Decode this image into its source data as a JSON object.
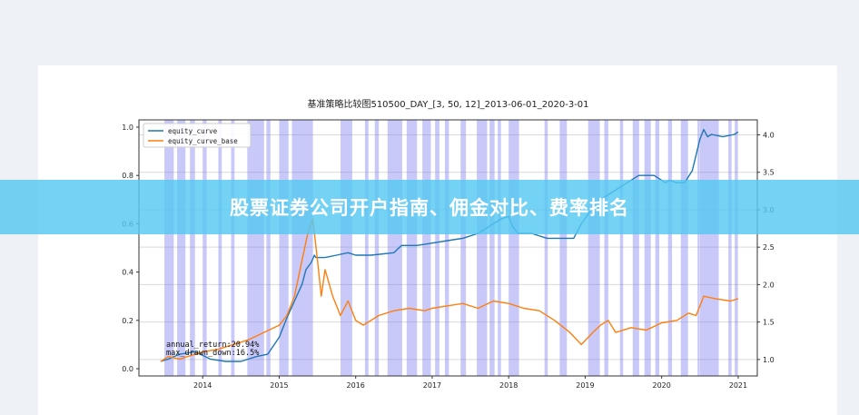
{
  "banner": {
    "text": "股票证券公司开户指南、佣金对比、费率排名"
  },
  "chart_data": {
    "type": "line",
    "title": "基准策略比较图510500_DAY_[3, 50, 12]_2013-06-01_2020-3-01",
    "xlabel": "",
    "ylabel": "",
    "x_ticks": [
      "2014",
      "2015",
      "2016",
      "2017",
      "2018",
      "2019",
      "2020",
      "2021"
    ],
    "xlim": [
      "2013-03-01",
      "2021-04-01"
    ],
    "y_left_ticks": [
      "0.0",
      "0.2",
      "0.4",
      "0.6",
      "0.8",
      "1.0"
    ],
    "ylim_left": [
      -0.03,
      1.03
    ],
    "y_right_ticks": [
      "1.0",
      "1.5",
      "2.0",
      "2.5",
      "3.0",
      "3.5",
      "4.0"
    ],
    "ylim_right": [
      0.78,
      4.2
    ],
    "grid": true,
    "legend_position": "upper-left",
    "annotations": [
      "annual_return:20.94%",
      "max_drawn_down:16.5%"
    ],
    "series": [
      {
        "name": "equity_curve",
        "color": "#1f77b4",
        "axis": "left",
        "x": [
          2013.45,
          2013.55,
          2013.7,
          2013.9,
          2014.1,
          2014.3,
          2014.5,
          2014.7,
          2014.85,
          2015.0,
          2015.1,
          2015.2,
          2015.3,
          2015.35,
          2015.42,
          2015.46,
          2015.48,
          2015.6,
          2015.75,
          2015.9,
          2016.0,
          2016.2,
          2016.5,
          2016.6,
          2016.8,
          2017.0,
          2017.2,
          2017.4,
          2017.6,
          2017.75,
          2017.9,
          2018.0,
          2018.05,
          2018.12,
          2018.3,
          2018.5,
          2018.85,
          2018.95,
          2019.15,
          2019.3,
          2019.5,
          2019.7,
          2019.9,
          2020.05,
          2020.1,
          2020.2,
          2020.3,
          2020.4,
          2020.5,
          2020.55,
          2020.6,
          2020.65,
          2020.8,
          2020.95,
          2021.0
        ],
        "values": [
          0.03,
          0.04,
          0.06,
          0.07,
          0.04,
          0.03,
          0.03,
          0.05,
          0.06,
          0.13,
          0.21,
          0.28,
          0.35,
          0.41,
          0.44,
          0.47,
          0.46,
          0.46,
          0.47,
          0.48,
          0.47,
          0.47,
          0.48,
          0.51,
          0.51,
          0.52,
          0.53,
          0.54,
          0.56,
          0.59,
          0.62,
          0.63,
          0.59,
          0.56,
          0.56,
          0.54,
          0.54,
          0.6,
          0.69,
          0.72,
          0.76,
          0.8,
          0.8,
          0.77,
          0.78,
          0.77,
          0.77,
          0.82,
          0.95,
          0.99,
          0.96,
          0.97,
          0.96,
          0.97,
          0.98
        ]
      },
      {
        "name": "equity_curve_base",
        "color": "#ff7f0e",
        "axis": "left",
        "x": [
          2013.45,
          2013.55,
          2013.7,
          2013.9,
          2014.0,
          2014.2,
          2014.4,
          2014.6,
          2014.8,
          2015.0,
          2015.1,
          2015.2,
          2015.3,
          2015.38,
          2015.44,
          2015.5,
          2015.55,
          2015.6,
          2015.7,
          2015.8,
          2015.9,
          2016.0,
          2016.1,
          2016.3,
          2016.5,
          2016.7,
          2016.9,
          2017.0,
          2017.2,
          2017.4,
          2017.6,
          2017.8,
          2018.0,
          2018.2,
          2018.4,
          2018.6,
          2018.8,
          2018.95,
          2019.1,
          2019.2,
          2019.3,
          2019.4,
          2019.6,
          2019.8,
          2020.0,
          2020.2,
          2020.35,
          2020.45,
          2020.55,
          2020.7,
          2020.9,
          2021.0
        ],
        "values": [
          0.03,
          0.05,
          0.04,
          0.06,
          0.07,
          0.08,
          0.1,
          0.12,
          0.15,
          0.18,
          0.22,
          0.3,
          0.45,
          0.57,
          0.62,
          0.45,
          0.3,
          0.41,
          0.3,
          0.22,
          0.28,
          0.2,
          0.18,
          0.22,
          0.24,
          0.25,
          0.24,
          0.25,
          0.26,
          0.27,
          0.25,
          0.28,
          0.27,
          0.25,
          0.24,
          0.2,
          0.15,
          0.1,
          0.15,
          0.18,
          0.2,
          0.15,
          0.17,
          0.16,
          0.19,
          0.2,
          0.23,
          0.22,
          0.3,
          0.29,
          0.28,
          0.29
        ]
      }
    ],
    "shaded_periods": [
      [
        "2013-07-01",
        "2013-08-15"
      ],
      [
        "2013-09-01",
        "2013-10-10"
      ],
      [
        "2013-11-01",
        "2013-11-25"
      ],
      [
        "2014-01-01",
        "2014-01-20"
      ],
      [
        "2014-03-15",
        "2014-04-01"
      ],
      [
        "2014-05-15",
        "2014-06-01"
      ],
      [
        "2014-08-01",
        "2014-10-20"
      ],
      [
        "2014-11-01",
        "2014-11-20"
      ],
      [
        "2015-01-01",
        "2015-02-15"
      ],
      [
        "2015-03-01",
        "2015-06-10"
      ],
      [
        "2015-10-20",
        "2015-12-15"
      ],
      [
        "2016-02-15",
        "2016-03-01"
      ],
      [
        "2016-04-01",
        "2016-04-20"
      ],
      [
        "2016-06-01",
        "2016-08-10"
      ],
      [
        "2016-09-01",
        "2016-10-20"
      ],
      [
        "2016-11-15",
        "2016-12-25"
      ],
      [
        "2017-01-15",
        "2017-02-05"
      ],
      [
        "2017-03-01",
        "2017-03-20"
      ],
      [
        "2017-05-15",
        "2017-06-10"
      ],
      [
        "2017-08-01",
        "2017-09-20"
      ],
      [
        "2017-10-01",
        "2017-10-25"
      ],
      [
        "2017-11-10",
        "2017-11-25"
      ],
      [
        "2018-01-01",
        "2018-02-20"
      ],
      [
        "2018-06-20",
        "2018-07-05"
      ],
      [
        "2018-09-01",
        "2018-10-05"
      ],
      [
        "2019-01-15",
        "2019-03-10"
      ],
      [
        "2019-04-01",
        "2019-04-20"
      ],
      [
        "2019-06-15",
        "2019-06-30"
      ],
      [
        "2019-08-15",
        "2019-09-15"
      ],
      [
        "2019-10-10",
        "2019-11-10"
      ],
      [
        "2019-12-01",
        "2019-12-20"
      ],
      [
        "2020-02-01",
        "2020-02-20"
      ],
      [
        "2020-04-01",
        "2020-05-05"
      ],
      [
        "2020-06-20",
        "2020-06-30"
      ],
      [
        "2020-07-01",
        "2020-09-30"
      ],
      [
        "2020-11-15",
        "2020-11-30"
      ],
      [
        "2020-12-15",
        "2020-12-30"
      ]
    ]
  }
}
